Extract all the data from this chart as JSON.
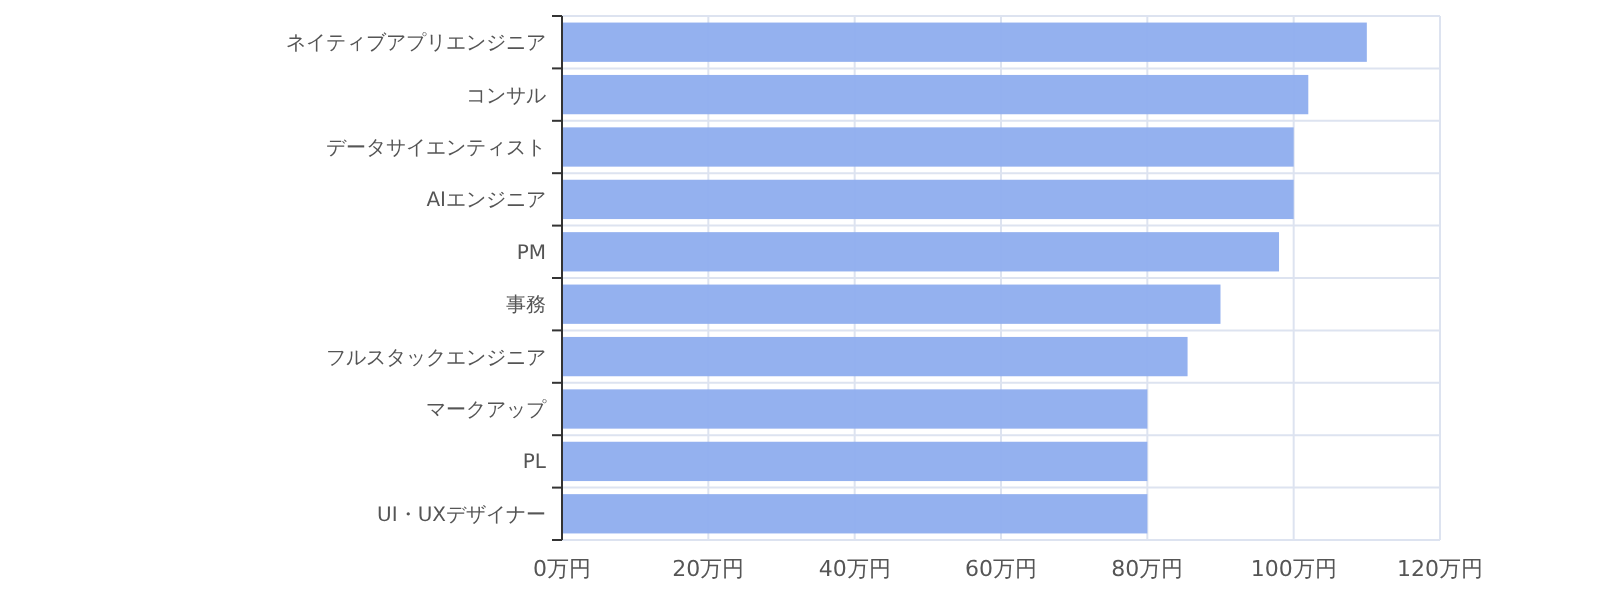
{
  "chart_data": {
    "type": "bar",
    "orientation": "horizontal",
    "categories": [
      "ネイティブアプリエンジニア",
      "コンサル",
      "データサイエンティスト",
      "AIエンジニア",
      "PM",
      "事務",
      "フルスタックエンジニア",
      "マークアップ",
      "PL",
      "UI・UXデザイナー"
    ],
    "values": [
      110,
      102,
      100,
      100,
      98,
      90,
      85.5,
      80,
      80,
      80
    ],
    "color": "#8eadee",
    "xlim": [
      0,
      120
    ],
    "xticks": [
      {
        "value": 0,
        "label": "0万円"
      },
      {
        "value": 20,
        "label": "20万円"
      },
      {
        "value": 40,
        "label": "40万円"
      },
      {
        "value": 60,
        "label": "60万円"
      },
      {
        "value": 80,
        "label": "80万円"
      },
      {
        "value": 100,
        "label": "100万円"
      },
      {
        "value": 120,
        "label": "120万円"
      }
    ],
    "grid": true
  }
}
